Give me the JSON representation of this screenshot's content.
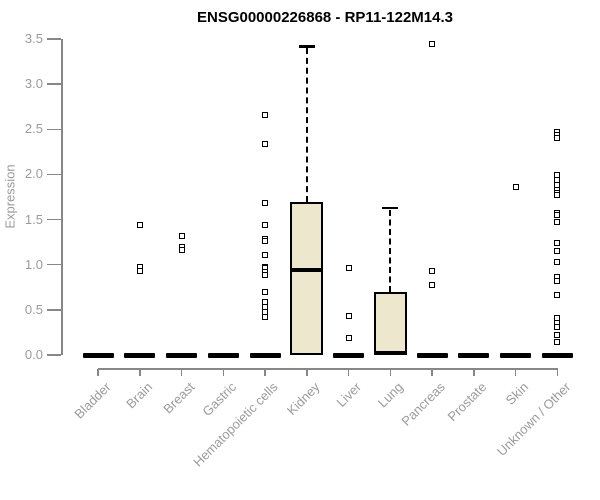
{
  "chart_data": {
    "type": "box",
    "title": "ENSG00000226868 - RP11-122M14.3",
    "ylabel": "Expression",
    "xlabel": "",
    "ylim": [
      0.0,
      3.5
    ],
    "yticks": [
      "0.0",
      "0.5",
      "1.0",
      "1.5",
      "2.0",
      "2.5",
      "3.0",
      "3.5"
    ],
    "grid": false,
    "legend": "none",
    "categories": [
      "Bladder",
      "Brain",
      "Breast",
      "Gastric",
      "Hematopoietic cells",
      "Kidney",
      "Liver",
      "Lung",
      "Pancreas",
      "Prostate",
      "Skin",
      "Unknown / Other"
    ],
    "boxes": [
      {
        "category": "Bladder",
        "q1": 0,
        "median": 0,
        "q3": 0,
        "whisker_low": 0,
        "whisker_high": 0,
        "outliers": []
      },
      {
        "category": "Brain",
        "q1": 0,
        "median": 0,
        "q3": 0,
        "whisker_low": 0,
        "whisker_high": 0,
        "outliers": [
          1.44,
          0.97,
          0.93
        ]
      },
      {
        "category": "Breast",
        "q1": 0,
        "median": 0,
        "q3": 0,
        "whisker_low": 0,
        "whisker_high": 0,
        "outliers": [
          1.32,
          1.2,
          1.16
        ]
      },
      {
        "category": "Gastric",
        "q1": 0,
        "median": 0,
        "q3": 0,
        "whisker_low": 0,
        "whisker_high": 0,
        "outliers": []
      },
      {
        "category": "Hematopoietic cells",
        "q1": 0,
        "median": 0,
        "q3": 0,
        "whisker_low": 0,
        "whisker_high": 0,
        "outliers": [
          2.66,
          2.34,
          1.68,
          1.44,
          1.29,
          1.26,
          1.11,
          0.98,
          0.96,
          0.92,
          0.89,
          0.7,
          0.59,
          0.53,
          0.48,
          0.42
        ]
      },
      {
        "category": "Kidney",
        "q1": 0,
        "median": 0.94,
        "q3": 1.69,
        "whisker_low": 0,
        "whisker_high": 3.42,
        "outliers": []
      },
      {
        "category": "Liver",
        "q1": 0,
        "median": 0,
        "q3": 0,
        "whisker_low": 0,
        "whisker_high": 0,
        "outliers": [
          0.96,
          0.43,
          0.19
        ]
      },
      {
        "category": "Lung",
        "q1": 0,
        "median": 0.02,
        "q3": 0.7,
        "whisker_low": 0,
        "whisker_high": 1.63,
        "outliers": []
      },
      {
        "category": "Pancreas",
        "q1": 0,
        "median": 0,
        "q3": 0,
        "whisker_low": 0,
        "whisker_high": 0,
        "outliers": [
          3.45,
          0.93,
          0.77
        ]
      },
      {
        "category": "Prostate",
        "q1": 0,
        "median": 0,
        "q3": 0,
        "whisker_low": 0,
        "whisker_high": 0,
        "outliers": []
      },
      {
        "category": "Skin",
        "q1": 0,
        "median": 0,
        "q3": 0,
        "whisker_low": 0,
        "whisker_high": 0,
        "outliers": [
          1.86
        ]
      },
      {
        "category": "Unknown / Other",
        "q1": 0,
        "median": 0,
        "q3": 0,
        "whisker_low": 0,
        "whisker_high": 0,
        "outliers": [
          2.47,
          2.44,
          2.4,
          1.99,
          1.94,
          1.88,
          1.83,
          1.79,
          1.77,
          1.57,
          1.55,
          1.47,
          1.24,
          1.15,
          1.03,
          0.86,
          0.82,
          0.66,
          0.41,
          0.35,
          0.31,
          0.22,
          0.14
        ]
      }
    ],
    "colors": {
      "box_fill": "#EDE8CD",
      "box_border": "#000000",
      "median": "#000000",
      "axis": "#878787",
      "tick_label": "#9B9B9B",
      "title": "#000000",
      "outlier": "#000000",
      "background": "#FFFFFF"
    }
  }
}
